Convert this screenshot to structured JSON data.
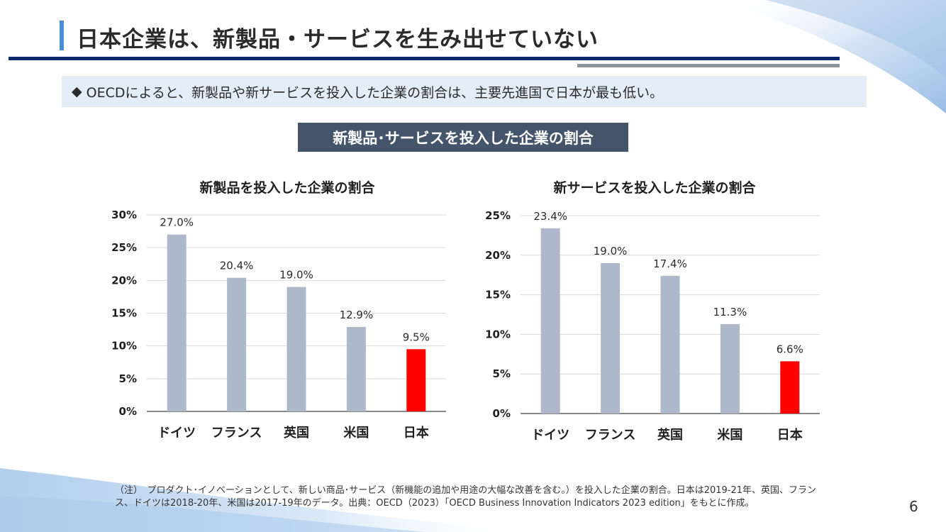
{
  "header": {
    "title": "日本企業は、新製品・サービスを生み出せていない"
  },
  "summary": {
    "bullet": "◆",
    "text": "OECDによると、新製品や新サービスを投入した企業の割合は、主要先進国で日本が最も低い。"
  },
  "section_banner": "新製品･サービスを投入した企業の割合",
  "colors": {
    "bar_default": "#adb9ca",
    "bar_highlight": "#ff0000",
    "title_accent": "#4a8fd1",
    "rule_navy": "#0d2a6e",
    "rule_gray": "#8a949e",
    "banner_bg": "#44546a",
    "summary_bg": "#e3edf8"
  },
  "chart_data": [
    {
      "type": "bar",
      "title": "新製品を投入した企業の割合",
      "categories": [
        "ドイツ",
        "フランス",
        "英国",
        "米国",
        "日本"
      ],
      "values": [
        27.0,
        20.4,
        19.0,
        12.9,
        9.5
      ],
      "data_labels": [
        "27.0%",
        "20.4%",
        "19.0%",
        "12.9%",
        "9.5%"
      ],
      "highlight_index": 4,
      "ylim": [
        0,
        30
      ],
      "yticks": [
        0,
        5,
        10,
        15,
        20,
        25,
        30
      ],
      "ytick_labels": [
        "0%",
        "5%",
        "10%",
        "15%",
        "20%",
        "25%",
        "30%"
      ],
      "xlabel": "",
      "ylabel": "",
      "grid": true
    },
    {
      "type": "bar",
      "title": "新サービスを投入した企業の割合",
      "categories": [
        "ドイツ",
        "フランス",
        "英国",
        "米国",
        "日本"
      ],
      "values": [
        23.4,
        19.0,
        17.4,
        11.3,
        6.6
      ],
      "data_labels": [
        "23.4%",
        "19.0%",
        "17.4%",
        "11.3%",
        "6.6%"
      ],
      "highlight_index": 4,
      "ylim": [
        0,
        25
      ],
      "yticks": [
        0,
        5,
        10,
        15,
        20,
        25
      ],
      "ytick_labels": [
        "0%",
        "5%",
        "10%",
        "15%",
        "20%",
        "25%"
      ],
      "xlabel": "",
      "ylabel": "",
      "grid": true
    }
  ],
  "footnote": {
    "line1": "（注）　プロダクト･イノベーションとして、新しい商品･サービス（新機能の追加や用途の大幅な改善を含む。）を投入した企業の割合。日本は2019-21年、英国、フラン",
    "line2": "ス、ドイツは2018-20年、米国は2017-19年のデータ。出典：OECD（2023）「OECD Business Innovation Indicators 2023 edition」をもとに作成。"
  },
  "page_number": "6"
}
